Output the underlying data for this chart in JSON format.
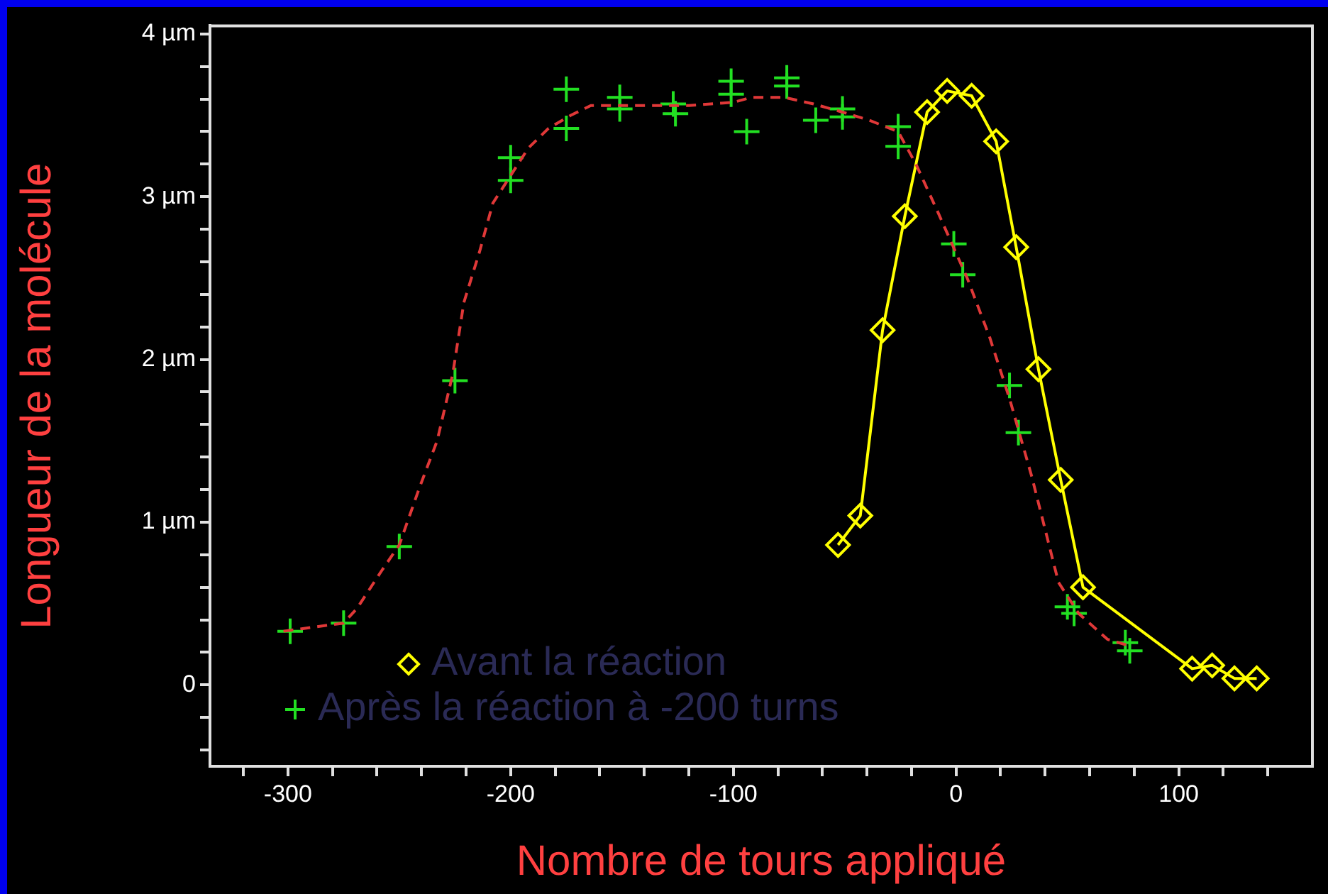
{
  "chart_data": {
    "type": "scatter",
    "xlabel": "Nombre de tours appliqué",
    "ylabel": "Longueur de la molécule",
    "xlim": [
      -335,
      160
    ],
    "ylim": [
      -0.5,
      4.05
    ],
    "xticks": [
      {
        "value": -320,
        "label": null
      },
      -300,
      {
        "value": -280,
        "label": null
      },
      {
        "value": -260,
        "label": null
      },
      {
        "value": -240,
        "label": null
      },
      {
        "value": -220,
        "label": null
      },
      -200,
      {
        "value": -180,
        "label": null
      },
      {
        "value": -160,
        "label": null
      },
      {
        "value": -140,
        "label": null
      },
      {
        "value": -120,
        "label": null
      },
      -100,
      {
        "value": -80,
        "label": null
      },
      {
        "value": -60,
        "label": null
      },
      {
        "value": -40,
        "label": null
      },
      {
        "value": -20,
        "label": null
      },
      0,
      {
        "value": 20,
        "label": null
      },
      {
        "value": 40,
        "label": null
      },
      {
        "value": 60,
        "label": null
      },
      {
        "value": 80,
        "label": null
      },
      100,
      {
        "value": 120,
        "label": null
      },
      {
        "value": 140,
        "label": null
      }
    ],
    "yticks": [
      {
        "value": -0.4,
        "label": null
      },
      {
        "value": -0.2,
        "label": null
      },
      0,
      {
        "value": 0.2,
        "label": null
      },
      {
        "value": 0.4,
        "label": null
      },
      {
        "value": 0.6,
        "label": null
      },
      {
        "value": 0.8,
        "label": null
      },
      {
        "value": 1,
        "label": "1 µm"
      },
      {
        "value": 1.2,
        "label": null
      },
      {
        "value": 1.4,
        "label": null
      },
      {
        "value": 1.6,
        "label": null
      },
      {
        "value": 1.8,
        "label": null
      },
      {
        "value": 2,
        "label": "2 µm"
      },
      {
        "value": 2.2,
        "label": null
      },
      {
        "value": 2.4,
        "label": null
      },
      {
        "value": 2.6,
        "label": null
      },
      {
        "value": 2.8,
        "label": null
      },
      {
        "value": 3,
        "label": "3 µm"
      },
      {
        "value": 3.2,
        "label": null
      },
      {
        "value": 3.4,
        "label": null
      },
      {
        "value": 3.6,
        "label": null
      },
      {
        "value": 3.8,
        "label": null
      },
      {
        "value": 4,
        "label": "4 µm"
      }
    ],
    "grid": false,
    "legend": "bottom",
    "series": [
      {
        "type": "line",
        "color": "#e03838",
        "line_style": "dashed",
        "marker": "none",
        "x": [
          -302,
          -275,
          -269,
          -258,
          -250,
          -241,
          -233,
          -226,
          -221,
          -214,
          -208,
          -200,
          -192,
          -183,
          -173,
          -164,
          -140,
          -120,
          -100,
          -92,
          -77,
          -64,
          -51,
          -39,
          -26,
          -18,
          -8,
          5,
          15,
          24,
          34,
          46,
          55,
          68,
          78
        ],
        "values": [
          0.33,
          0.38,
          0.47,
          0.7,
          0.86,
          1.21,
          1.5,
          1.91,
          2.35,
          2.66,
          2.96,
          3.13,
          3.3,
          3.42,
          3.5,
          3.56,
          3.56,
          3.56,
          3.58,
          3.61,
          3.61,
          3.57,
          3.52,
          3.47,
          3.4,
          3.2,
          2.9,
          2.5,
          2.14,
          1.76,
          1.28,
          0.63,
          0.44,
          0.28,
          0.24
        ]
      },
      {
        "type": "line",
        "name": "Avant la réaction",
        "color": "#ffff00",
        "line_style": "solid",
        "marker": "diamond",
        "x": [
          -53,
          -43,
          -33,
          -23,
          -13,
          -4,
          7,
          18,
          27,
          37,
          47,
          57,
          106,
          115,
          125,
          135
        ],
        "values": [
          0.86,
          1.04,
          2.18,
          2.88,
          3.52,
          3.65,
          3.62,
          3.34,
          2.69,
          1.94,
          1.26,
          0.6,
          0.1,
          0.12,
          0.04,
          0.04
        ]
      },
      {
        "name": "Après la réaction à -200 turns",
        "color": "#22e022",
        "marker": "cross",
        "x": [
          -299,
          -275,
          -250,
          -225,
          -200,
          -200,
          -175,
          -175,
          -151,
          -151,
          -127,
          -126,
          -101,
          -101,
          -94,
          -76,
          -76,
          -63,
          -51,
          -51,
          -26,
          -26,
          -1,
          3,
          24,
          28,
          50,
          53,
          76,
          78
        ],
        "values": [
          0.33,
          0.38,
          0.85,
          1.87,
          3.24,
          3.1,
          3.66,
          3.42,
          3.61,
          3.54,
          3.57,
          3.51,
          3.71,
          3.63,
          3.4,
          3.73,
          3.68,
          3.47,
          3.54,
          3.49,
          3.43,
          3.31,
          2.71,
          2.52,
          1.84,
          1.55,
          0.48,
          0.44,
          0.26,
          0.21
        ]
      }
    ]
  }
}
